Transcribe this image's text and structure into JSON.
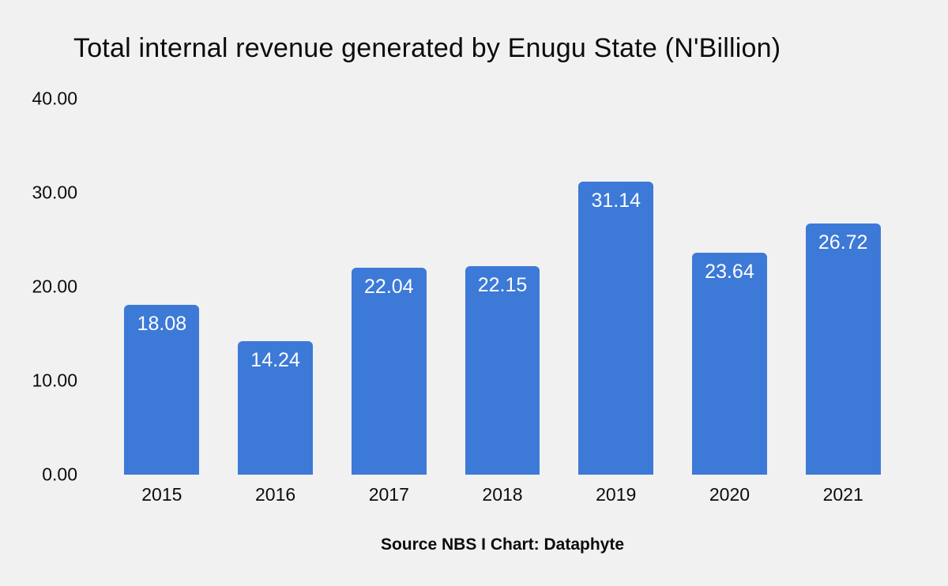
{
  "chart_data": {
    "type": "bar",
    "title": "Total internal revenue generated by Enugu State (N'Billion)",
    "categories": [
      "2015",
      "2016",
      "2017",
      "2018",
      "2019",
      "2020",
      "2021"
    ],
    "values": [
      18.08,
      14.24,
      22.04,
      22.15,
      31.14,
      23.64,
      26.72
    ],
    "value_labels": [
      "18.08",
      "14.24",
      "22.04",
      "22.15",
      "31.14",
      "23.64",
      "26.72"
    ],
    "y_ticks": [
      "40.00",
      "30.00",
      "20.00",
      "10.00",
      "0.00"
    ],
    "ylim": [
      0,
      40
    ],
    "xlabel": "",
    "ylabel": "",
    "grid": false,
    "legend": false,
    "source": "Source NBS I Chart: Dataphyte",
    "colors": {
      "bar": "#3d79d7",
      "bar_label": "#fcfdfe",
      "background": "#f1f1f2",
      "text": "#0c0c0c"
    }
  }
}
